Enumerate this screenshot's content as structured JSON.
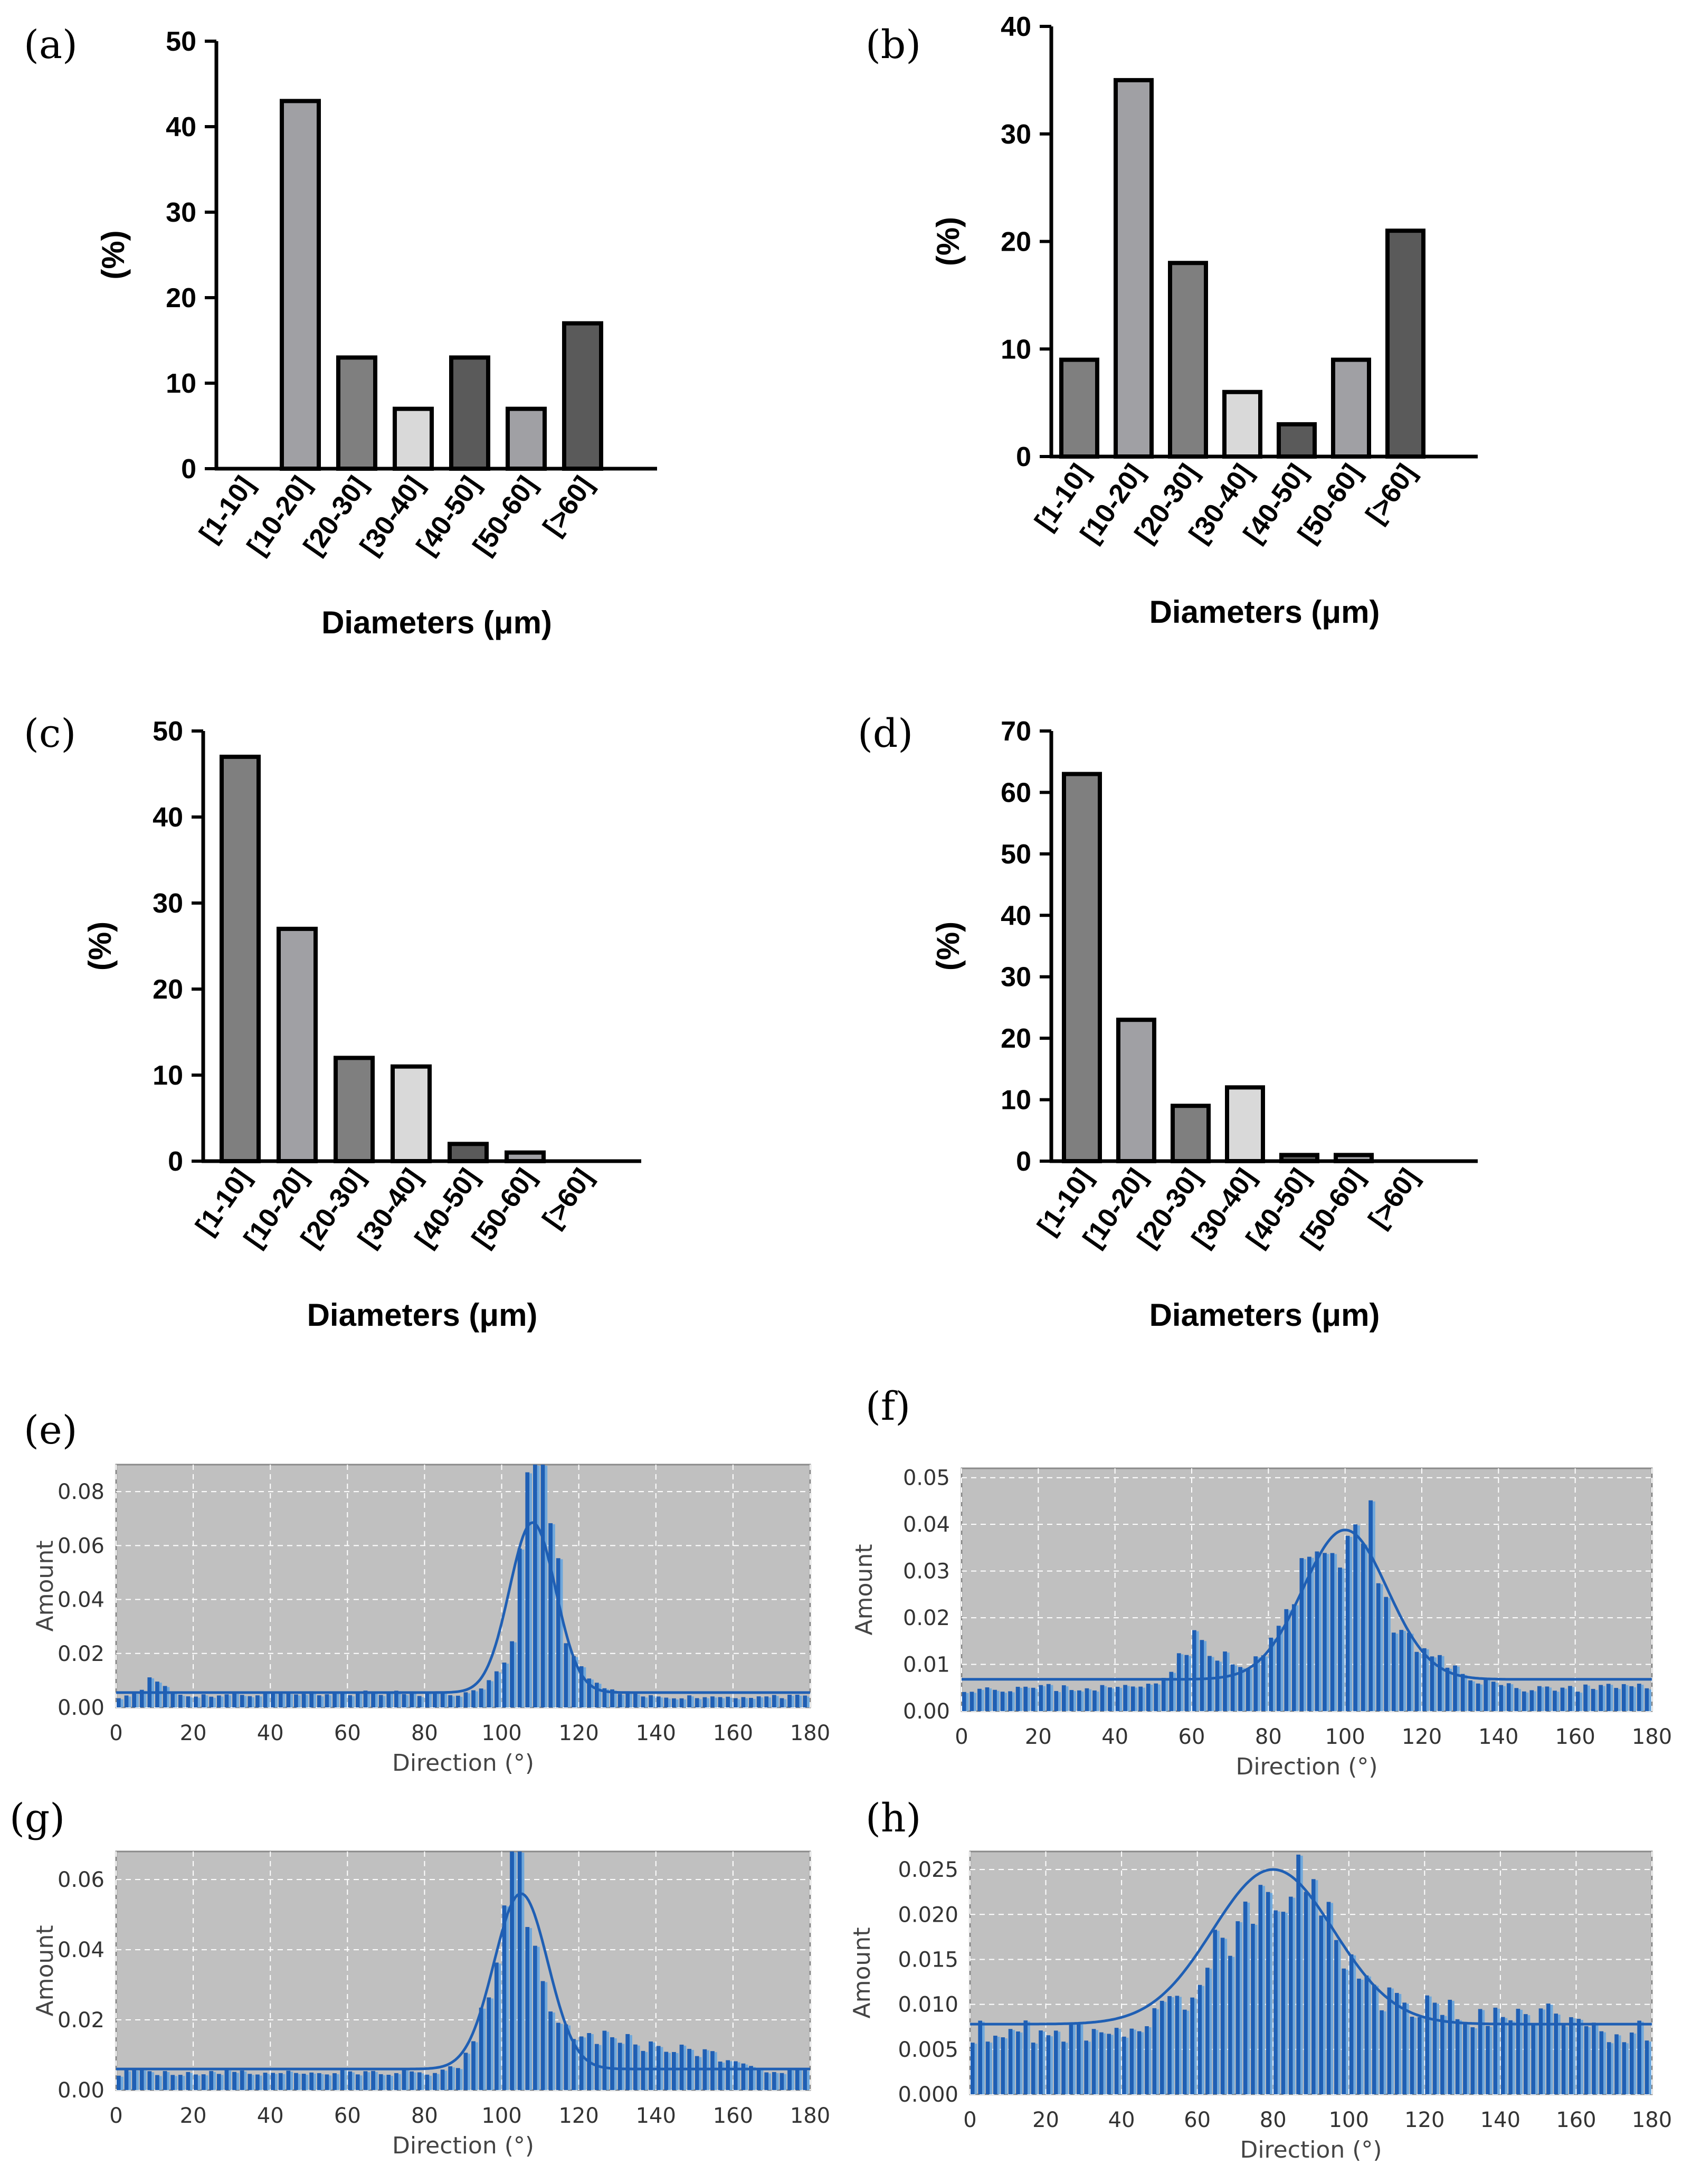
{
  "colors": {
    "bar_dark": "#5a5a5a",
    "bar_mid": "#7f7f7f",
    "bar_light": "#a0a0a4",
    "bar_lightest": "#d9d9d9",
    "bar_outline": "#000000",
    "hist_bg": "#c0c0c0",
    "hist_bar": "#1f5fb4",
    "hist_bar_light": "#6fa8dc",
    "hist_fit": "#1f5fb4"
  },
  "chart_data": [
    {
      "panel": "(a)",
      "type": "bar",
      "title": "",
      "xlabel": "Diameters (μm)",
      "ylabel": "(%)",
      "ylim": [
        0,
        50
      ],
      "yticks": [
        "0",
        "10",
        "20",
        "30",
        "40",
        "50"
      ],
      "categories": [
        "[1-10]",
        "[10-20]",
        "[20-30]",
        "[30-40]",
        "[40-50]",
        "[50-60]",
        "[>60]"
      ],
      "values": [
        0,
        43,
        13,
        7,
        13,
        7,
        17
      ],
      "fills": [
        "bar_mid",
        "bar_light",
        "bar_mid",
        "bar_lightest",
        "bar_dark",
        "bar_light",
        "bar_dark"
      ]
    },
    {
      "panel": "(b)",
      "type": "bar",
      "title": "",
      "xlabel": "Diameters (μm)",
      "ylabel": "(%)",
      "ylim": [
        0,
        40
      ],
      "yticks": [
        "0",
        "10",
        "20",
        "30",
        "40"
      ],
      "categories": [
        "[1-10]",
        "[10-20]",
        "[20-30]",
        "[30-40]",
        "[40-50]",
        "[50-60]",
        "[>60]"
      ],
      "values": [
        9,
        35,
        18,
        6,
        3,
        9,
        21
      ],
      "fills": [
        "bar_mid",
        "bar_light",
        "bar_mid",
        "bar_lightest",
        "bar_dark",
        "bar_light",
        "bar_dark"
      ]
    },
    {
      "panel": "(c)",
      "type": "bar",
      "title": "",
      "xlabel": "Diameters (μm)",
      "ylabel": "(%)",
      "ylim": [
        0,
        50
      ],
      "yticks": [
        "0",
        "10",
        "20",
        "30",
        "40",
        "50"
      ],
      "categories": [
        "[1-10]",
        "[10-20]",
        "[20-30]",
        "[30-40]",
        "[40-50]",
        "[50-60]",
        "[>60]"
      ],
      "values": [
        47,
        27,
        12,
        11,
        2,
        1,
        0
      ],
      "fills": [
        "bar_mid",
        "bar_light",
        "bar_mid",
        "bar_lightest",
        "bar_dark",
        "bar_light",
        "bar_dark"
      ]
    },
    {
      "panel": "(d)",
      "type": "bar",
      "title": "",
      "xlabel": "Diameters (μm)",
      "ylabel": "(%)",
      "ylim": [
        0,
        70
      ],
      "yticks": [
        "0",
        "10",
        "20",
        "30",
        "40",
        "50",
        "60",
        "70"
      ],
      "categories": [
        "[1-10]",
        "[10-20]",
        "[20-30]",
        "[30-40]",
        "[40-50]",
        "[50-60]",
        "[>60]"
      ],
      "values": [
        63,
        23,
        9,
        12,
        1,
        1,
        0
      ],
      "fills": [
        "bar_mid",
        "bar_light",
        "bar_mid",
        "bar_lightest",
        "bar_dark",
        "bar_light",
        "bar_dark"
      ]
    },
    {
      "panel": "(e)",
      "type": "bar",
      "title": "",
      "xlabel": "Direction (°)",
      "ylabel": "Amount",
      "xlim": [
        0,
        180
      ],
      "ylim": [
        0,
        0.09
      ],
      "xticks": [
        "0",
        "20",
        "40",
        "60",
        "80",
        "100",
        "120",
        "140",
        "160",
        "180"
      ],
      "yticks": [
        "0.00",
        "0.02",
        "0.04",
        "0.06",
        "0.08"
      ],
      "ytick_values": [
        0,
        0.02,
        0.04,
        0.06,
        0.08
      ],
      "baseline": 0.004,
      "bumps": [
        [
          10,
          0.006,
          3
        ],
        [
          113,
          0.014,
          8
        ],
        [
          60,
          0.0015,
          25
        ]
      ],
      "peaks": [
        [
          104,
          0.01,
          4
        ],
        [
          108,
          0.078,
          2.2
        ],
        [
          112,
          0.05,
          3
        ]
      ],
      "fit": {
        "baseline": 0.0055,
        "center": 108,
        "amp": 0.063,
        "sigma": 6
      },
      "seed": 11
    },
    {
      "panel": "(f)",
      "type": "bar",
      "title": "",
      "xlabel": "Direction (°)",
      "ylabel": "Amount",
      "xlim": [
        0,
        180
      ],
      "ylim": [
        0,
        0.052
      ],
      "xticks": [
        "0",
        "20",
        "40",
        "60",
        "80",
        "100",
        "120",
        "140",
        "160",
        "180"
      ],
      "yticks": [
        "0.00",
        "0.01",
        "0.02",
        "0.03",
        "0.04",
        "0.05"
      ],
      "ytick_values": [
        0,
        0.01,
        0.02,
        0.03,
        0.04,
        0.05
      ],
      "baseline": 0.005,
      "bumps": [
        [
          62,
          0.01,
          6
        ],
        [
          98,
          0.032,
          11
        ],
        [
          125,
          0.004,
          8
        ]
      ],
      "peaks": [
        [
          107,
          0.02,
          1.2
        ]
      ],
      "fit": {
        "baseline": 0.0068,
        "center": 100,
        "amp": 0.032,
        "sigma": 11
      },
      "seed": 23
    },
    {
      "panel": "(g)",
      "type": "bar",
      "title": "",
      "xlabel": "Direction (°)",
      "ylabel": "Amount",
      "xlim": [
        0,
        180
      ],
      "ylim": [
        0,
        0.068
      ],
      "xticks": [
        "0",
        "20",
        "40",
        "60",
        "80",
        "100",
        "120",
        "140",
        "160",
        "180"
      ],
      "yticks": [
        "0.00",
        "0.02",
        "0.04",
        "0.06"
      ],
      "ytick_values": [
        0,
        0.02,
        0.04,
        0.06
      ],
      "baseline": 0.005,
      "bumps": [
        [
          104,
          0.05,
          6
        ],
        [
          125,
          0.01,
          12
        ],
        [
          150,
          0.005,
          10
        ]
      ],
      "peaks": [
        [
          103,
          0.012,
          1.5
        ]
      ],
      "fit": {
        "baseline": 0.006,
        "center": 105,
        "amp": 0.05,
        "sigma": 7
      },
      "seed": 37
    },
    {
      "panel": "(h)",
      "type": "bar",
      "title": "",
      "xlabel": "Direction (°)",
      "ylabel": "Amount",
      "xlim": [
        0,
        180
      ],
      "ylim": [
        0,
        0.027
      ],
      "xticks": [
        "0",
        "20",
        "40",
        "60",
        "80",
        "100",
        "120",
        "140",
        "160",
        "180"
      ],
      "yticks": [
        "0.000",
        "0.005",
        "0.010",
        "0.015",
        "0.020",
        "0.025"
      ],
      "ytick_values": [
        0,
        0.005,
        0.01,
        0.015,
        0.02,
        0.025
      ],
      "baseline": 0.007,
      "bumps": [
        [
          82,
          0.017,
          15
        ],
        [
          125,
          0.002,
          12
        ],
        [
          150,
          0.002,
          6
        ]
      ],
      "peaks": [],
      "fit": {
        "baseline": 0.0078,
        "center": 80,
        "amp": 0.0172,
        "sigma": 16
      },
      "seed": 53
    }
  ]
}
